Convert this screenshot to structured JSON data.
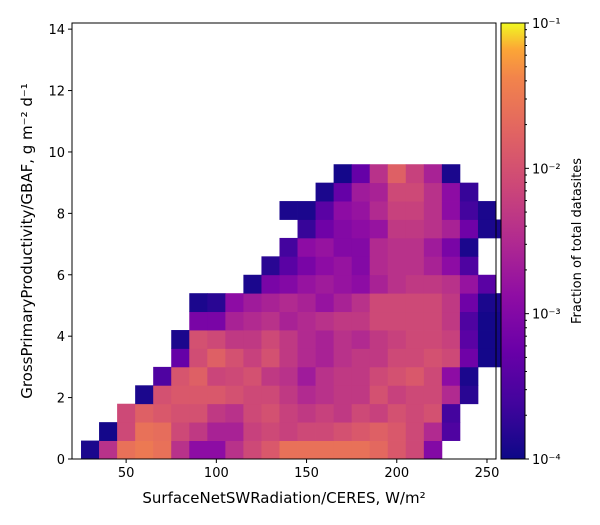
{
  "chart_data": {
    "type": "heatmap",
    "title": "",
    "xlabel": "SurfaceNetSWRadiation/CERES,  W/m²",
    "ylabel": "GrossPrimaryProductivity/GBAF,  g m⁻² d⁻¹",
    "xlim": [
      20,
      255
    ],
    "ylim": [
      0,
      14.2
    ],
    "xticks": [
      50,
      100,
      150,
      200,
      250
    ],
    "yticks": [
      0,
      2,
      4,
      6,
      8,
      10,
      12,
      14
    ],
    "x_bin_start": 25,
    "x_bin_width": 10,
    "y_bin_width": 0.6,
    "colorbar": {
      "label": "Fraction of total datasites",
      "scale": "log",
      "range": [
        0.0001,
        0.1
      ],
      "tick_labels": [
        "10⁻⁴",
        "10⁻³",
        "10⁻²",
        "10⁻¹"
      ],
      "tick_values": [
        0.0001,
        0.001,
        0.01,
        0.1
      ],
      "colormap": "plasma"
    },
    "rows": [
      {
        "y0": 0.0,
        "start": 0,
        "values": [
          -3.9,
          -2.4,
          -1.6,
          -1.5,
          -1.6,
          -2.4,
          -2.9,
          -2.9,
          -2.4,
          -2.1,
          -1.9,
          -1.6,
          -1.6,
          -1.6,
          -1.6,
          -1.6,
          -1.7,
          -1.9,
          -2.1,
          -3.0
        ]
      },
      {
        "y0": 0.6,
        "start": 1,
        "values": [
          -3.95,
          -2.1,
          -1.6,
          -1.65,
          -2.1,
          -2.3,
          -2.6,
          -2.6,
          -2.2,
          -2.1,
          -2.2,
          -2.1,
          -2.1,
          -2.0,
          -1.9,
          -1.8,
          -1.9,
          -2.1,
          -2.5,
          -3.5
        ]
      },
      {
        "y0": 1.2,
        "start": 2,
        "values": [
          -2.1,
          -1.8,
          -1.9,
          -2.0,
          -2.0,
          -2.3,
          -2.4,
          -2.1,
          -2.0,
          -2.2,
          -2.3,
          -2.2,
          -2.3,
          -2.1,
          -2.2,
          -2.0,
          -2.1,
          -2.0,
          -3.6
        ]
      },
      {
        "y0": 1.8,
        "start": 3,
        "values": [
          -3.9,
          -2.0,
          -1.9,
          -1.9,
          -1.9,
          -2.0,
          -2.1,
          -2.1,
          -2.3,
          -2.5,
          -2.4,
          -2.3,
          -2.3,
          -2.0,
          -2.2,
          -2.1,
          -2.1,
          -2.5,
          -3.8
        ]
      },
      {
        "y0": 2.4,
        "start": 4,
        "values": [
          -3.5,
          -1.95,
          -1.8,
          -2.15,
          -2.1,
          -2.0,
          -2.3,
          -2.4,
          -2.7,
          -2.4,
          -2.3,
          -2.3,
          -2.1,
          -2.0,
          -1.9,
          -2.1,
          -2.9,
          -3.9
        ]
      },
      {
        "y0": 3.0,
        "start": 5,
        "values": [
          -3.3,
          -2.05,
          -1.8,
          -2.0,
          -2.2,
          -2.0,
          -2.3,
          -2.5,
          -2.6,
          -2.4,
          -2.3,
          -2.3,
          -2.1,
          -2.1,
          -2.0,
          -2.1,
          -3.2,
          -3.95,
          -3.95
        ]
      },
      {
        "y0": 3.6,
        "start": 5,
        "values": [
          -3.9,
          -2.0,
          -2.1,
          -2.3,
          -2.3,
          -2.1,
          -2.3,
          -2.5,
          -2.6,
          -2.4,
          -2.5,
          -2.3,
          -2.2,
          -2.1,
          -2.1,
          -2.2,
          -3.4,
          -3.95,
          -3.95
        ]
      },
      {
        "y0": 4.2,
        "start": 6,
        "values": [
          -3.1,
          -3.1,
          -2.6,
          -2.5,
          -2.4,
          -2.6,
          -2.5,
          -2.4,
          -2.3,
          -2.3,
          -2.1,
          -2.1,
          -2.1,
          -2.1,
          -2.3,
          -3.5,
          -3.95,
          -3.95
        ]
      },
      {
        "y0": 4.8,
        "start": 6,
        "values": [
          -3.9,
          -3.8,
          -2.9,
          -2.7,
          -2.6,
          -2.5,
          -2.6,
          -2.8,
          -2.6,
          -2.4,
          -2.1,
          -2.1,
          -2.1,
          -2.1,
          -2.3,
          -3.2,
          -3.9,
          -3.9
        ]
      },
      {
        "y0": 5.4,
        "start": 9,
        "values": [
          -3.9,
          -3.1,
          -3.0,
          -2.8,
          -2.7,
          -2.8,
          -2.9,
          -2.6,
          -2.4,
          -2.3,
          -2.3,
          -2.4,
          -2.8,
          -3.4
        ]
      },
      {
        "y0": 6.0,
        "start": 10,
        "values": [
          -3.8,
          -3.4,
          -3.1,
          -2.9,
          -2.8,
          -3.0,
          -2.5,
          -2.4,
          -2.4,
          -2.6,
          -2.9,
          -3.5
        ]
      },
      {
        "y0": 6.6,
        "start": 11,
        "values": [
          -3.6,
          -2.9,
          -2.8,
          -3.0,
          -3.0,
          -2.5,
          -2.4,
          -2.4,
          -2.7,
          -3.1,
          -3.9
        ]
      },
      {
        "y0": 7.2,
        "start": 12,
        "values": [
          -3.7,
          -3.2,
          -3.0,
          -2.9,
          -2.8,
          -2.3,
          -2.3,
          -2.4,
          -2.6,
          -3.2,
          -3.9,
          -3.9
        ]
      },
      {
        "y0": 7.8,
        "start": 11,
        "values": [
          -3.9,
          -3.9,
          -3.4,
          -2.9,
          -2.8,
          -2.5,
          -2.2,
          -2.2,
          -2.4,
          -2.9,
          -3.6,
          -3.9
        ]
      },
      {
        "y0": 8.4,
        "start": 13,
        "values": [
          -3.9,
          -3.3,
          -2.7,
          -2.6,
          -2.1,
          -2.1,
          -2.4,
          -2.9,
          -3.7
        ]
      },
      {
        "y0": 9.0,
        "start": 14,
        "values": [
          -3.95,
          -3.3,
          -2.4,
          -1.8,
          -2.2,
          -2.6,
          -3.9
        ]
      }
    ]
  }
}
